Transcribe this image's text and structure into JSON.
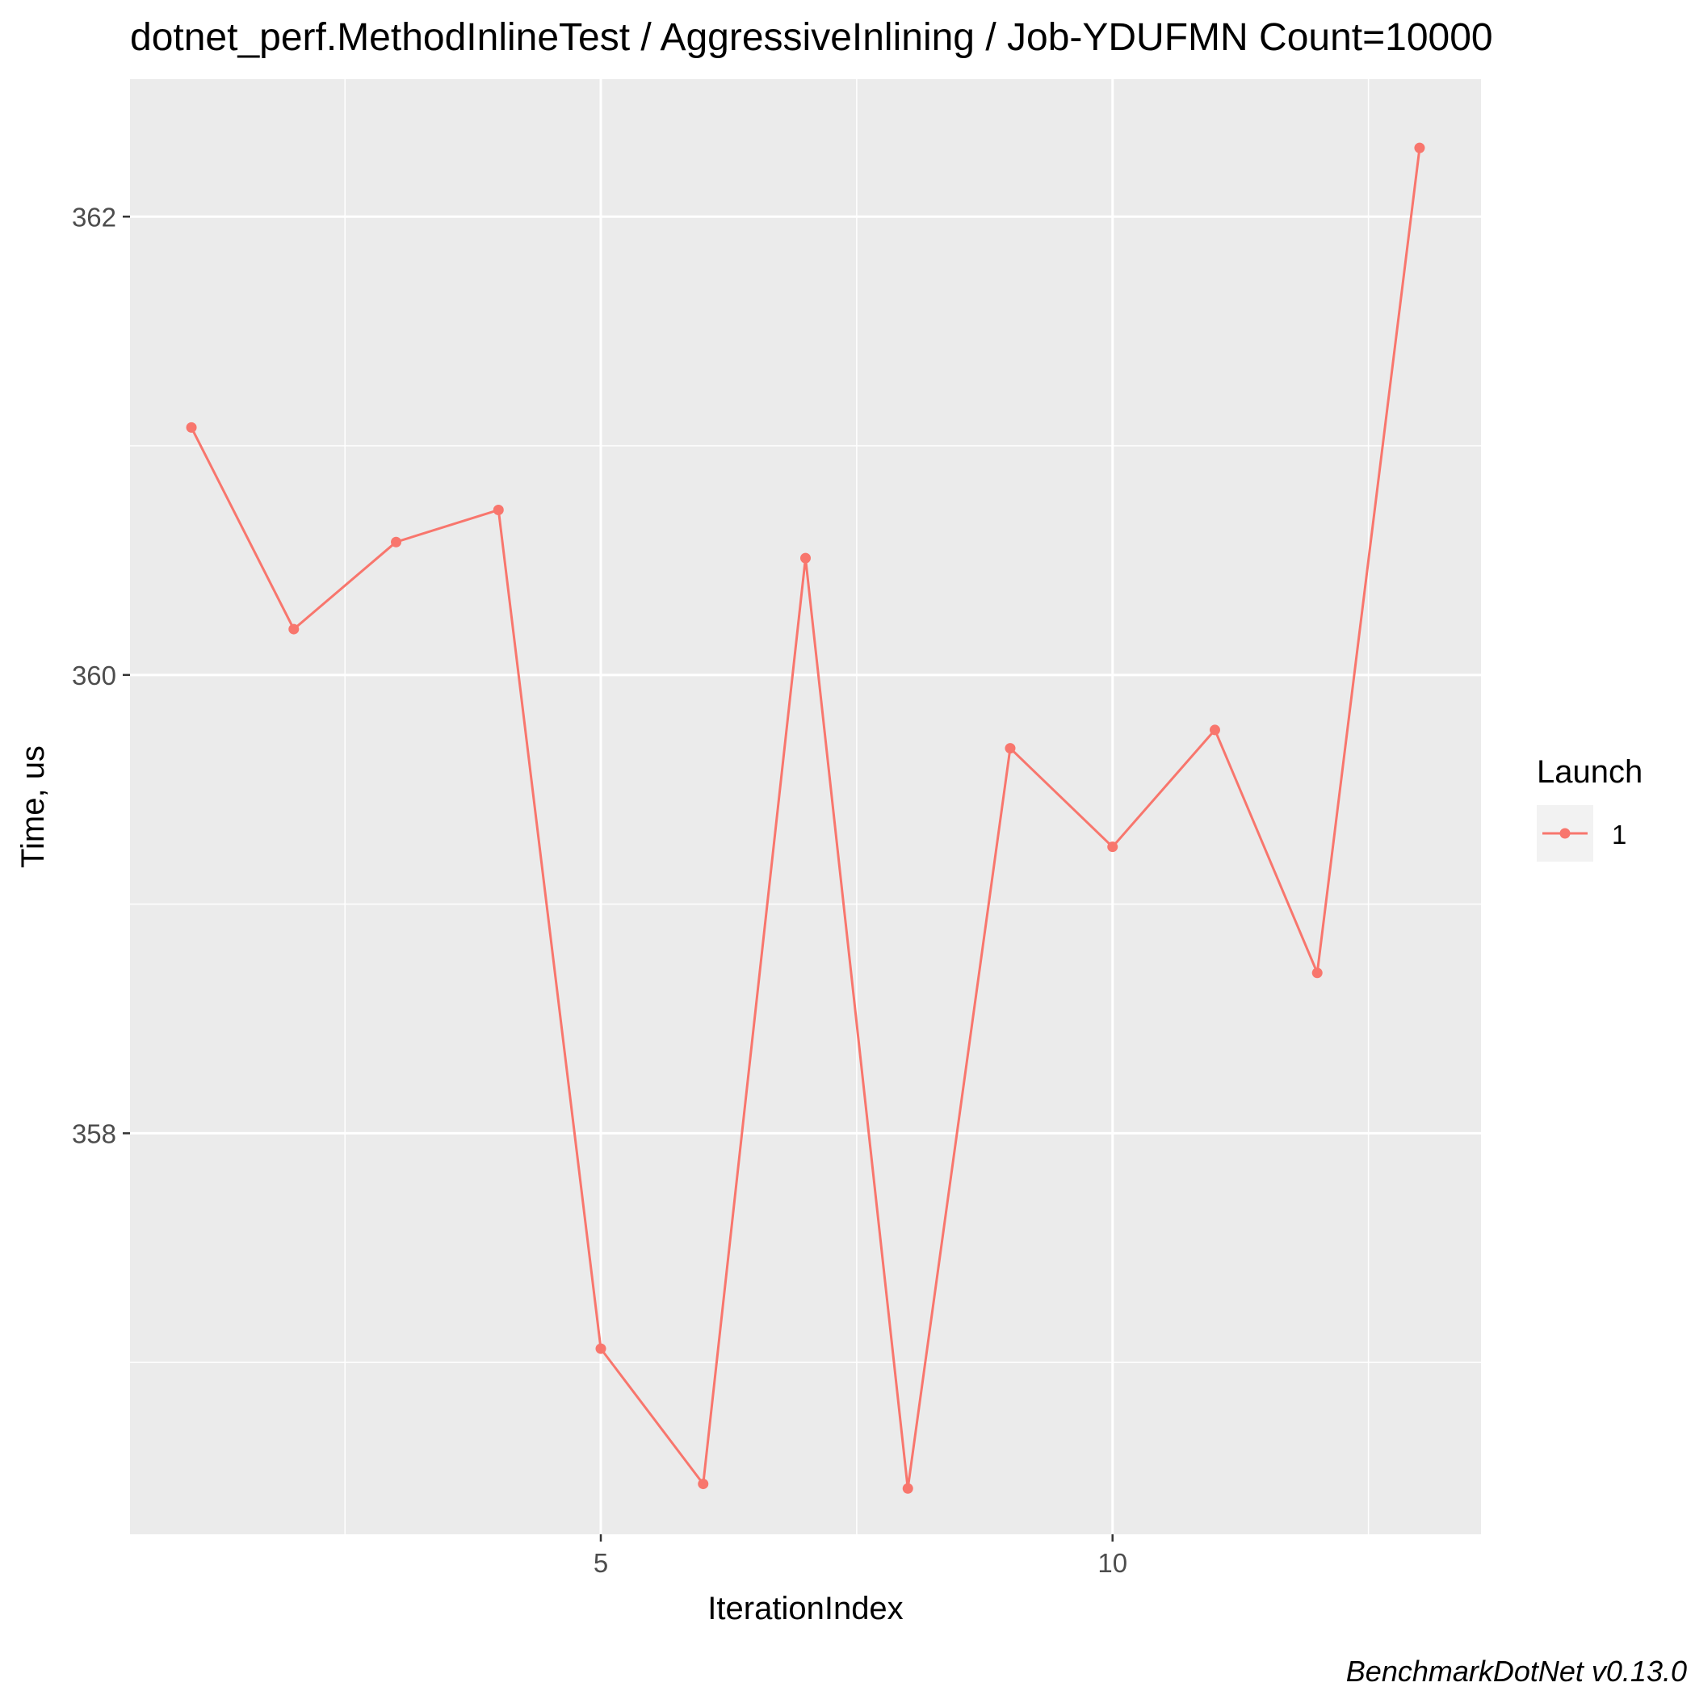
{
  "chart_data": {
    "type": "line",
    "title": "dotnet_perf.MethodInlineTest / AggressiveInlining / Job-YDUFMN Count=10000",
    "xlabel": "IterationIndex",
    "ylabel": "Time, us",
    "caption": "BenchmarkDotNet v0.13.0",
    "xlim": [
      0.4,
      13.6
    ],
    "ylim": [
      356.25,
      362.6
    ],
    "x_ticks": [
      5,
      10
    ],
    "x_tick_labels": [
      "5",
      "10"
    ],
    "x_minor_ticks": [
      2.5,
      7.5,
      12.5
    ],
    "y_ticks": [
      358,
      360,
      362
    ],
    "y_tick_labels": [
      "358",
      "360",
      "362"
    ],
    "y_minor_ticks": [
      357,
      359,
      361
    ],
    "grid": true,
    "panel_background": "#ebebeb",
    "legend": {
      "title": "Launch",
      "position": "right"
    },
    "series": [
      {
        "name": "1",
        "color": "#f8766d",
        "x": [
          1,
          2,
          3,
          4,
          5,
          6,
          7,
          8,
          9,
          10,
          11,
          12,
          13
        ],
        "y": [
          361.08,
          360.2,
          360.58,
          360.72,
          357.06,
          356.47,
          360.51,
          356.45,
          359.68,
          359.25,
          359.76,
          358.7,
          362.3
        ]
      }
    ]
  }
}
